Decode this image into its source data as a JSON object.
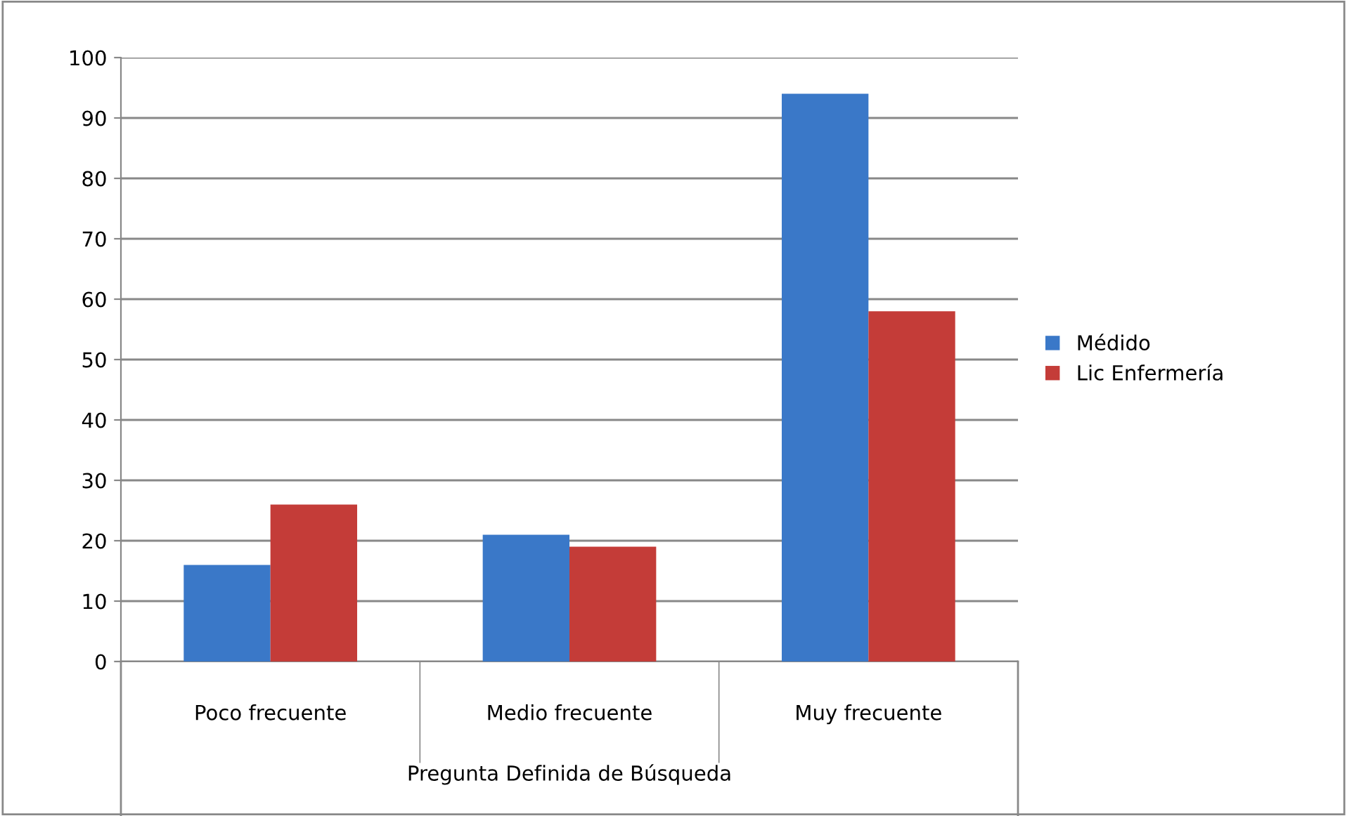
{
  "chart_data": {
    "type": "bar",
    "xlabel": "Pregunta Definida de Búsqueda",
    "categories": [
      "Poco frecuente",
      "Medio frecuente",
      "Muy frecuente"
    ],
    "series": [
      {
        "name": "Médido",
        "color": "#3a78c8",
        "values": [
          16,
          21,
          94
        ]
      },
      {
        "name": "Lic Enfermería",
        "color": "#c43c38",
        "values": [
          26,
          19,
          58
        ]
      }
    ],
    "ylim": [
      0,
      100
    ],
    "yticks": [
      0,
      10,
      20,
      30,
      40,
      50,
      60,
      70,
      80,
      90,
      100
    ],
    "grid": "y",
    "legend": "right"
  }
}
